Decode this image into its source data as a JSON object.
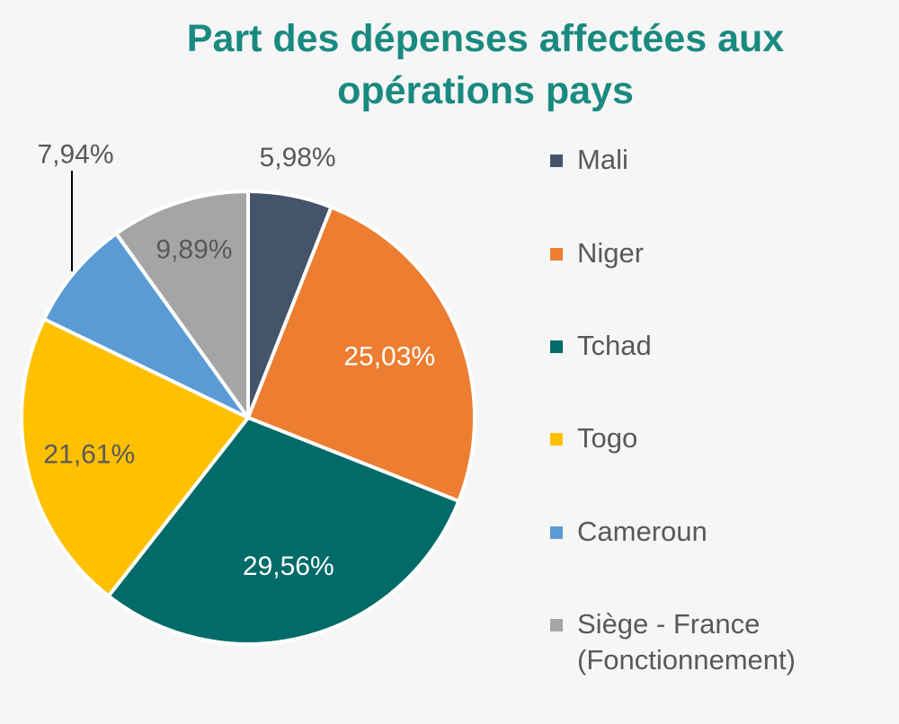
{
  "chart_data": {
    "type": "pie",
    "title_lines": [
      "Part des dépenses affectées aux",
      "opérations pays"
    ],
    "unit": "%",
    "legend_position": "right",
    "slices": [
      {
        "name": "Mali",
        "value": 5.98,
        "label": "5,98%",
        "color": "#44546a",
        "label_color": "#595959"
      },
      {
        "name": "Niger",
        "value": 25.03,
        "label": "25,03%",
        "color": "#ed7d31",
        "label_color": "#ffffff"
      },
      {
        "name": "Tchad",
        "value": 29.56,
        "label": "29,56%",
        "color": "#006b68",
        "label_color": "#ffffff"
      },
      {
        "name": "Togo",
        "value": 21.61,
        "label": "21,61%",
        "color": "#ffc000",
        "label_color": "#595959"
      },
      {
        "name": "Cameroun",
        "value": 7.94,
        "label": "7,94%",
        "color": "#5b9bd5",
        "label_color": "#595959"
      },
      {
        "name": "Siège - France\n(Fonctionnement)",
        "value": 9.89,
        "label": "9,89%",
        "color": "#a5a5a5",
        "label_color": "#595959"
      }
    ]
  }
}
